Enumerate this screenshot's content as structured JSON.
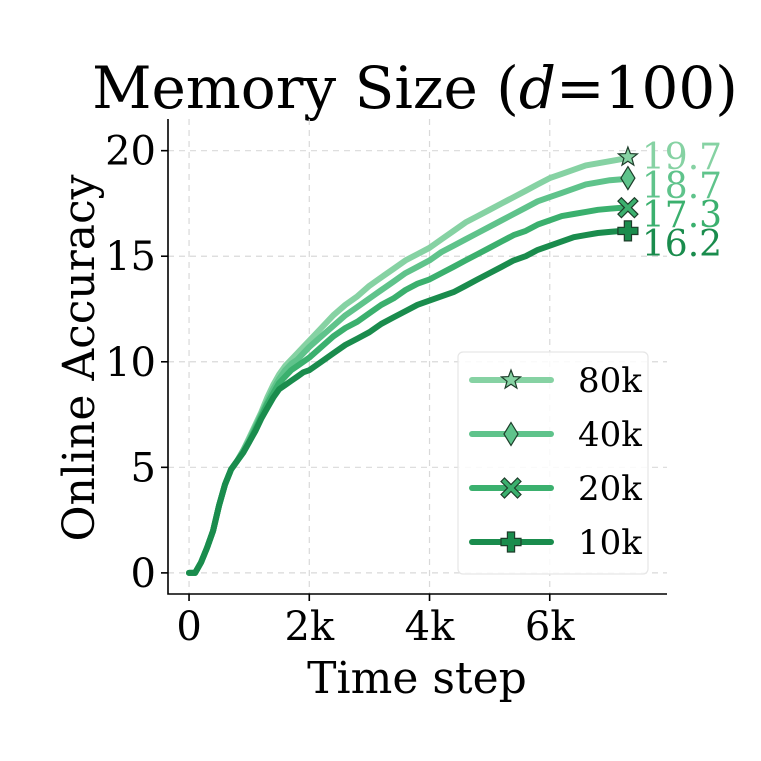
{
  "chart_data": {
    "type": "line",
    "title_prefix": "Memory Size (",
    "title_var": "d",
    "title_suffix": "=100)",
    "xlabel": "Time step",
    "ylabel": "Online Accuracy",
    "xlim": [
      -350,
      7950
    ],
    "ylim": [
      -1,
      21.5
    ],
    "xticks": [
      0,
      2000,
      4000,
      6000
    ],
    "xtick_labels": [
      "0",
      "2k",
      "4k",
      "6k"
    ],
    "yticks": [
      0,
      5,
      10,
      15,
      20
    ],
    "ytick_labels": [
      "0",
      "5",
      "10",
      "15",
      "20"
    ],
    "grid": true,
    "legend_position": "lower-right",
    "x": [
      0,
      100,
      200,
      300,
      400,
      500,
      600,
      700,
      800,
      900,
      1000,
      1100,
      1200,
      1300,
      1400,
      1500,
      1600,
      1700,
      1800,
      1900,
      2000,
      2200,
      2400,
      2600,
      2800,
      3000,
      3200,
      3400,
      3600,
      3800,
      4000,
      4200,
      4400,
      4600,
      4800,
      5000,
      5200,
      5400,
      5600,
      5800,
      6000,
      6200,
      6400,
      6600,
      6800,
      7000,
      7200,
      7300
    ],
    "series": [
      {
        "name": "80k",
        "color": "#86d2a3",
        "marker": "star",
        "end_label": "19.7",
        "values": [
          0,
          0,
          0.5,
          1.2,
          2.0,
          3.2,
          4.2,
          4.9,
          5.3,
          5.8,
          6.4,
          7.0,
          7.6,
          8.3,
          8.9,
          9.4,
          9.8,
          10.1,
          10.4,
          10.7,
          11.0,
          11.6,
          12.2,
          12.7,
          13.1,
          13.6,
          14.0,
          14.4,
          14.8,
          15.1,
          15.4,
          15.8,
          16.2,
          16.6,
          16.9,
          17.2,
          17.5,
          17.8,
          18.1,
          18.4,
          18.7,
          18.9,
          19.1,
          19.3,
          19.4,
          19.5,
          19.6,
          19.7
        ]
      },
      {
        "name": "40k",
        "color": "#5fc38b",
        "marker": "diamond",
        "end_label": "18.7",
        "values": [
          0,
          0,
          0.5,
          1.2,
          2.0,
          3.2,
          4.2,
          4.9,
          5.3,
          5.8,
          6.3,
          6.9,
          7.5,
          8.1,
          8.7,
          9.2,
          9.6,
          9.9,
          10.1,
          10.4,
          10.7,
          11.2,
          11.7,
          12.2,
          12.6,
          13.0,
          13.4,
          13.8,
          14.2,
          14.5,
          14.8,
          15.2,
          15.5,
          15.8,
          16.1,
          16.4,
          16.7,
          17.0,
          17.3,
          17.6,
          17.8,
          18.0,
          18.2,
          18.4,
          18.5,
          18.6,
          18.65,
          18.7
        ]
      },
      {
        "name": "20k",
        "color": "#3bb06e",
        "marker": "x",
        "end_label": "17.3",
        "values": [
          0,
          0,
          0.5,
          1.2,
          2.0,
          3.2,
          4.2,
          4.9,
          5.3,
          5.7,
          6.2,
          6.8,
          7.4,
          8.0,
          8.5,
          9.0,
          9.3,
          9.6,
          9.8,
          10.0,
          10.2,
          10.7,
          11.2,
          11.6,
          11.9,
          12.3,
          12.7,
          13.0,
          13.4,
          13.7,
          13.9,
          14.2,
          14.5,
          14.8,
          15.1,
          15.4,
          15.7,
          16.0,
          16.2,
          16.5,
          16.7,
          16.9,
          17.0,
          17.1,
          17.2,
          17.25,
          17.3,
          17.3
        ]
      },
      {
        "name": "10k",
        "color": "#1a8c4d",
        "marker": "plus",
        "end_label": "16.2",
        "values": [
          0,
          0,
          0.5,
          1.2,
          2.0,
          3.2,
          4.2,
          4.9,
          5.3,
          5.7,
          6.2,
          6.7,
          7.3,
          7.8,
          8.3,
          8.7,
          8.9,
          9.1,
          9.3,
          9.5,
          9.6,
          10.0,
          10.4,
          10.8,
          11.1,
          11.4,
          11.8,
          12.1,
          12.4,
          12.7,
          12.9,
          13.1,
          13.3,
          13.6,
          13.9,
          14.2,
          14.5,
          14.8,
          15.0,
          15.3,
          15.5,
          15.7,
          15.9,
          16.0,
          16.1,
          16.15,
          16.2,
          16.2
        ]
      }
    ]
  }
}
